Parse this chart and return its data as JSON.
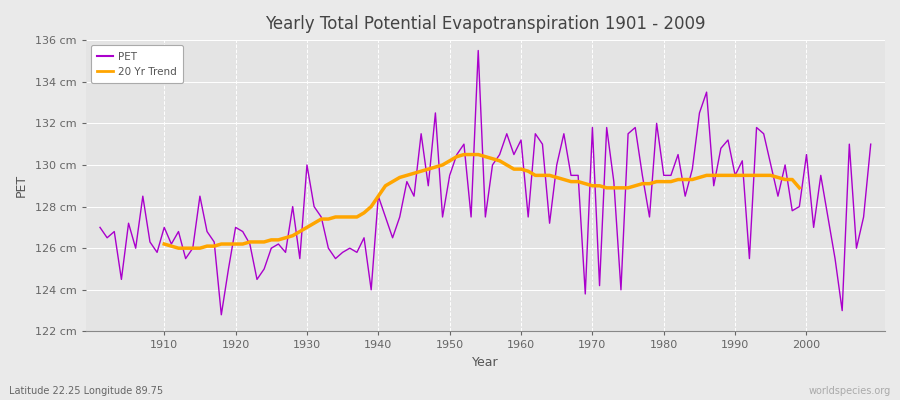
{
  "title": "Yearly Total Potential Evapotranspiration 1901 - 2009",
  "xlabel": "Year",
  "ylabel": "PET",
  "lat_lon_label": "Latitude 22.25 Longitude 89.75",
  "watermark": "worldspecies.org",
  "start_year": 1901,
  "end_year": 2009,
  "ylim": [
    122,
    136
  ],
  "yticks": [
    122,
    124,
    126,
    128,
    130,
    132,
    134,
    136
  ],
  "pet_color": "#AA00CC",
  "trend_color": "#FFA500",
  "background_color": "#EAEAEA",
  "plot_bg_color": "#E4E4E4",
  "grid_color": "#FFFFFF",
  "title_color": "#444444",
  "label_color": "#555555",
  "tick_color": "#666666",
  "pet_values": [
    127.0,
    126.5,
    126.8,
    124.5,
    127.2,
    126.0,
    128.5,
    126.3,
    125.8,
    127.0,
    126.2,
    126.8,
    125.5,
    126.0,
    128.5,
    126.8,
    126.3,
    122.8,
    125.0,
    127.0,
    126.8,
    126.2,
    124.5,
    125.0,
    126.0,
    126.2,
    125.8,
    128.0,
    125.5,
    130.0,
    128.0,
    127.5,
    126.0,
    125.5,
    125.8,
    126.0,
    125.8,
    126.5,
    124.0,
    128.5,
    127.5,
    126.5,
    127.5,
    129.2,
    128.5,
    131.5,
    129.0,
    132.5,
    127.5,
    129.5,
    130.5,
    131.0,
    127.5,
    135.5,
    127.5,
    130.0,
    130.5,
    131.5,
    130.5,
    131.2,
    127.5,
    131.5,
    131.0,
    127.2,
    130.0,
    131.5,
    129.5,
    129.5,
    123.8,
    131.8,
    124.2,
    131.8,
    129.2,
    124.0,
    131.5,
    131.8,
    129.5,
    127.5,
    132.0,
    129.5,
    129.5,
    130.5,
    128.5,
    129.8,
    132.5,
    133.5,
    129.0,
    130.8,
    131.2,
    129.5,
    130.2,
    125.5,
    131.8,
    131.5,
    130.0,
    128.5,
    130.0,
    127.8,
    128.0,
    130.5,
    127.0,
    129.5,
    127.5,
    125.5,
    123.0,
    131.0,
    126.0,
    127.5,
    131.0
  ],
  "trend_values": [
    null,
    null,
    null,
    null,
    null,
    null,
    null,
    null,
    null,
    126.2,
    126.1,
    126.0,
    126.0,
    126.0,
    126.0,
    126.1,
    126.1,
    126.2,
    126.2,
    126.2,
    126.2,
    126.3,
    126.3,
    126.3,
    126.4,
    126.4,
    126.5,
    126.6,
    126.8,
    127.0,
    127.2,
    127.4,
    127.4,
    127.5,
    127.5,
    127.5,
    127.5,
    127.7,
    128.0,
    128.5,
    129.0,
    129.2,
    129.4,
    129.5,
    129.6,
    129.7,
    129.8,
    129.9,
    130.0,
    130.2,
    130.4,
    130.5,
    130.5,
    130.5,
    130.4,
    130.3,
    130.2,
    130.0,
    129.8,
    129.8,
    129.7,
    129.5,
    129.5,
    129.5,
    129.4,
    129.3,
    129.2,
    129.2,
    129.1,
    129.0,
    129.0,
    128.9,
    128.9,
    128.9,
    128.9,
    129.0,
    129.1,
    129.1,
    129.2,
    129.2,
    129.2,
    129.3,
    129.3,
    129.3,
    129.4,
    129.5,
    129.5,
    129.5,
    129.5,
    129.5,
    129.5,
    129.5,
    129.5,
    129.5,
    129.5,
    129.4,
    129.3,
    129.3,
    128.9,
    null,
    null,
    null,
    null,
    null,
    null,
    null,
    null,
    null,
    null
  ]
}
